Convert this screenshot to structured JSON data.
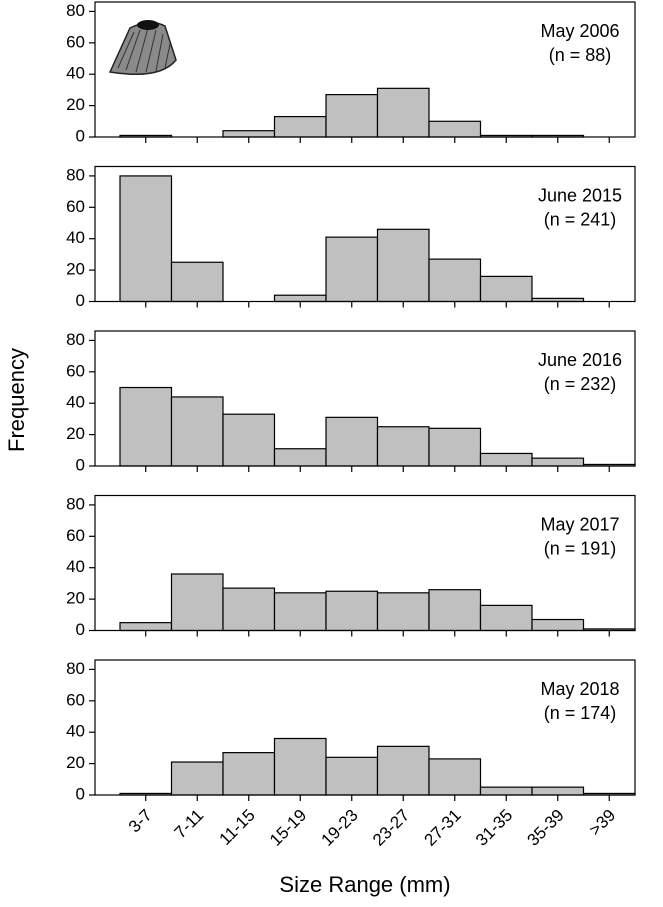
{
  "xlabel": "Size Range (mm)",
  "ylabel": "Frequency",
  "chart_data": [
    {
      "type": "bar",
      "annotations": [
        "May 2006",
        "(n = 88)"
      ],
      "values": [
        1,
        0,
        4,
        13,
        27,
        31,
        10,
        1,
        1,
        0
      ],
      "color": "#c0c0c0",
      "ylim": [
        0,
        86
      ],
      "yticks": [
        0,
        20,
        40,
        60,
        80
      ]
    },
    {
      "type": "bar",
      "annotations": [
        "June 2015",
        "(n = 241)"
      ],
      "values": [
        80,
        25,
        0,
        4,
        41,
        46,
        27,
        16,
        2,
        0
      ],
      "color": "#c0c0c0",
      "ylim": [
        0,
        86
      ],
      "yticks": [
        0,
        20,
        40,
        60,
        80
      ]
    },
    {
      "type": "bar",
      "annotations": [
        "June 2016",
        "(n = 232)"
      ],
      "values": [
        50,
        44,
        33,
        11,
        31,
        25,
        24,
        8,
        5,
        1
      ],
      "color": "#c0c0c0",
      "ylim": [
        0,
        86
      ],
      "yticks": [
        0,
        20,
        40,
        60,
        80
      ]
    },
    {
      "type": "bar",
      "annotations": [
        "May 2017",
        "(n = 191)"
      ],
      "values": [
        5,
        36,
        27,
        24,
        25,
        24,
        26,
        16,
        7,
        1
      ],
      "color": "#c0c0c0",
      "ylim": [
        0,
        86
      ],
      "yticks": [
        0,
        20,
        40,
        60,
        80
      ]
    },
    {
      "type": "bar",
      "annotations": [
        "May 2018",
        "(n = 174)"
      ],
      "categories": [
        "3-7",
        "7-11",
        "11-15",
        "15-19",
        "19-23",
        "23-27",
        "27-31",
        "31-35",
        "35-39",
        ">39"
      ],
      "values": [
        1,
        21,
        27,
        36,
        24,
        31,
        23,
        5,
        5,
        1
      ],
      "color": "#c0c0c0",
      "ylim": [
        0,
        86
      ],
      "yticks": [
        0,
        20,
        40,
        60,
        80
      ]
    }
  ]
}
